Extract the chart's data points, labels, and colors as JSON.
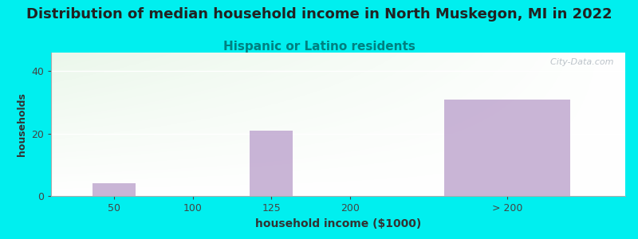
{
  "title": "Distribution of median household income in North Muskegon, MI in 2022",
  "subtitle": "Hispanic or Latino residents",
  "xlabel": "household income ($1000)",
  "ylabel": "households",
  "categories": [
    "50",
    "100",
    "125",
    "200",
    "> 200"
  ],
  "values": [
    4,
    0,
    21,
    0,
    31
  ],
  "bar_color": "#c0a8d0",
  "bar_widths": [
    0.55,
    0.55,
    0.55,
    0.55,
    1.6
  ],
  "bar_positions": [
    1,
    2,
    3,
    4,
    6
  ],
  "background_color": "#00efef",
  "ylim": [
    0,
    46
  ],
  "yticks": [
    0,
    20,
    40
  ],
  "xlim": [
    0.2,
    7.5
  ],
  "title_fontsize": 13,
  "subtitle_fontsize": 11,
  "subtitle_color": "#008080",
  "xlabel_fontsize": 10,
  "ylabel_fontsize": 9,
  "tick_fontsize": 9,
  "watermark": "  City-Data.com",
  "watermark_color": "#b0b8c0"
}
